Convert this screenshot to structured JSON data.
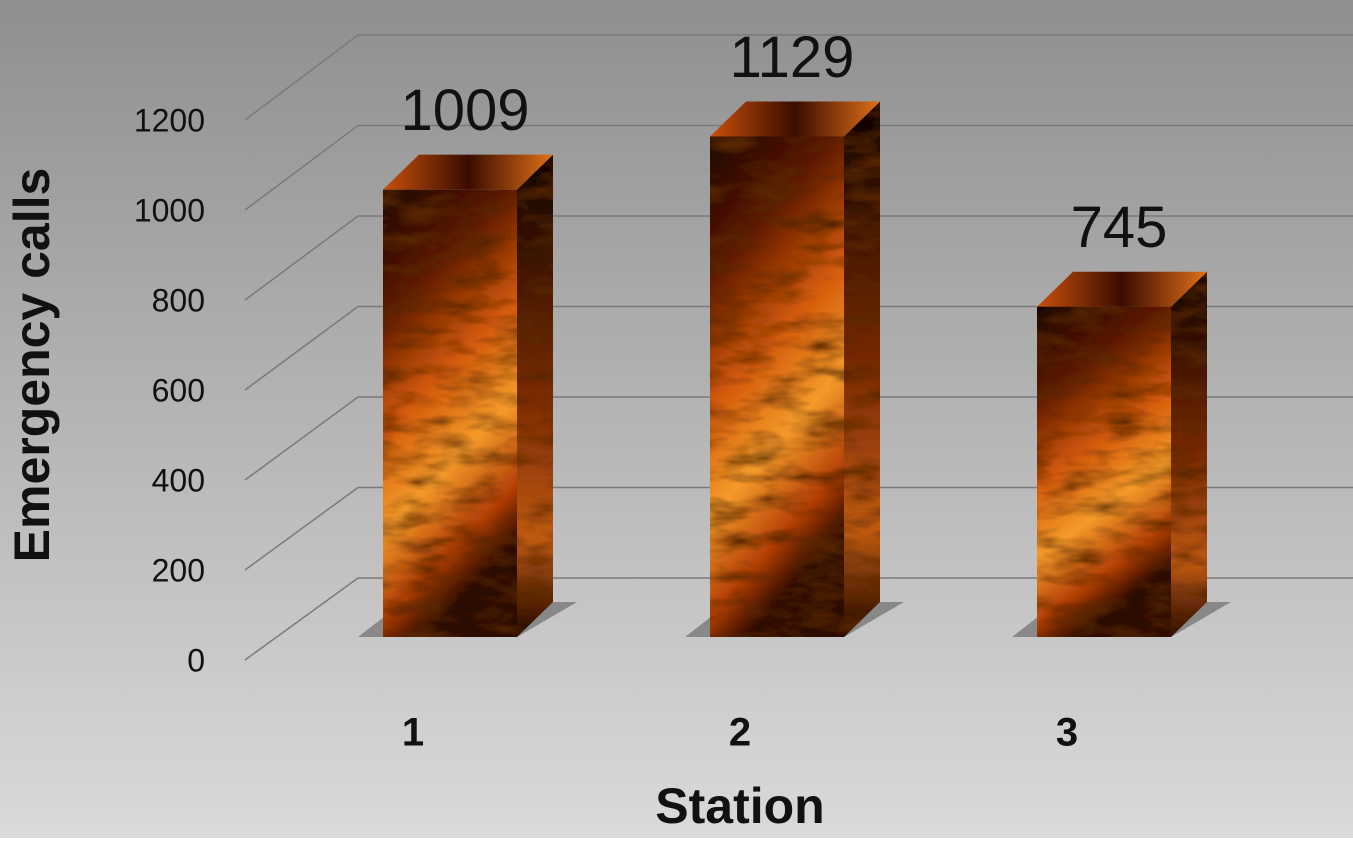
{
  "chart_data": {
    "type": "bar3d",
    "categories": [
      "1",
      "2",
      "3"
    ],
    "values": [
      1009,
      1129,
      745
    ],
    "ylim": [
      0,
      1200
    ],
    "yticks": [
      0,
      200,
      400,
      600,
      800,
      1000,
      1200
    ],
    "y_label": "Emergency calls",
    "x_label": "Station",
    "grid": true,
    "color": "#e8680f"
  }
}
